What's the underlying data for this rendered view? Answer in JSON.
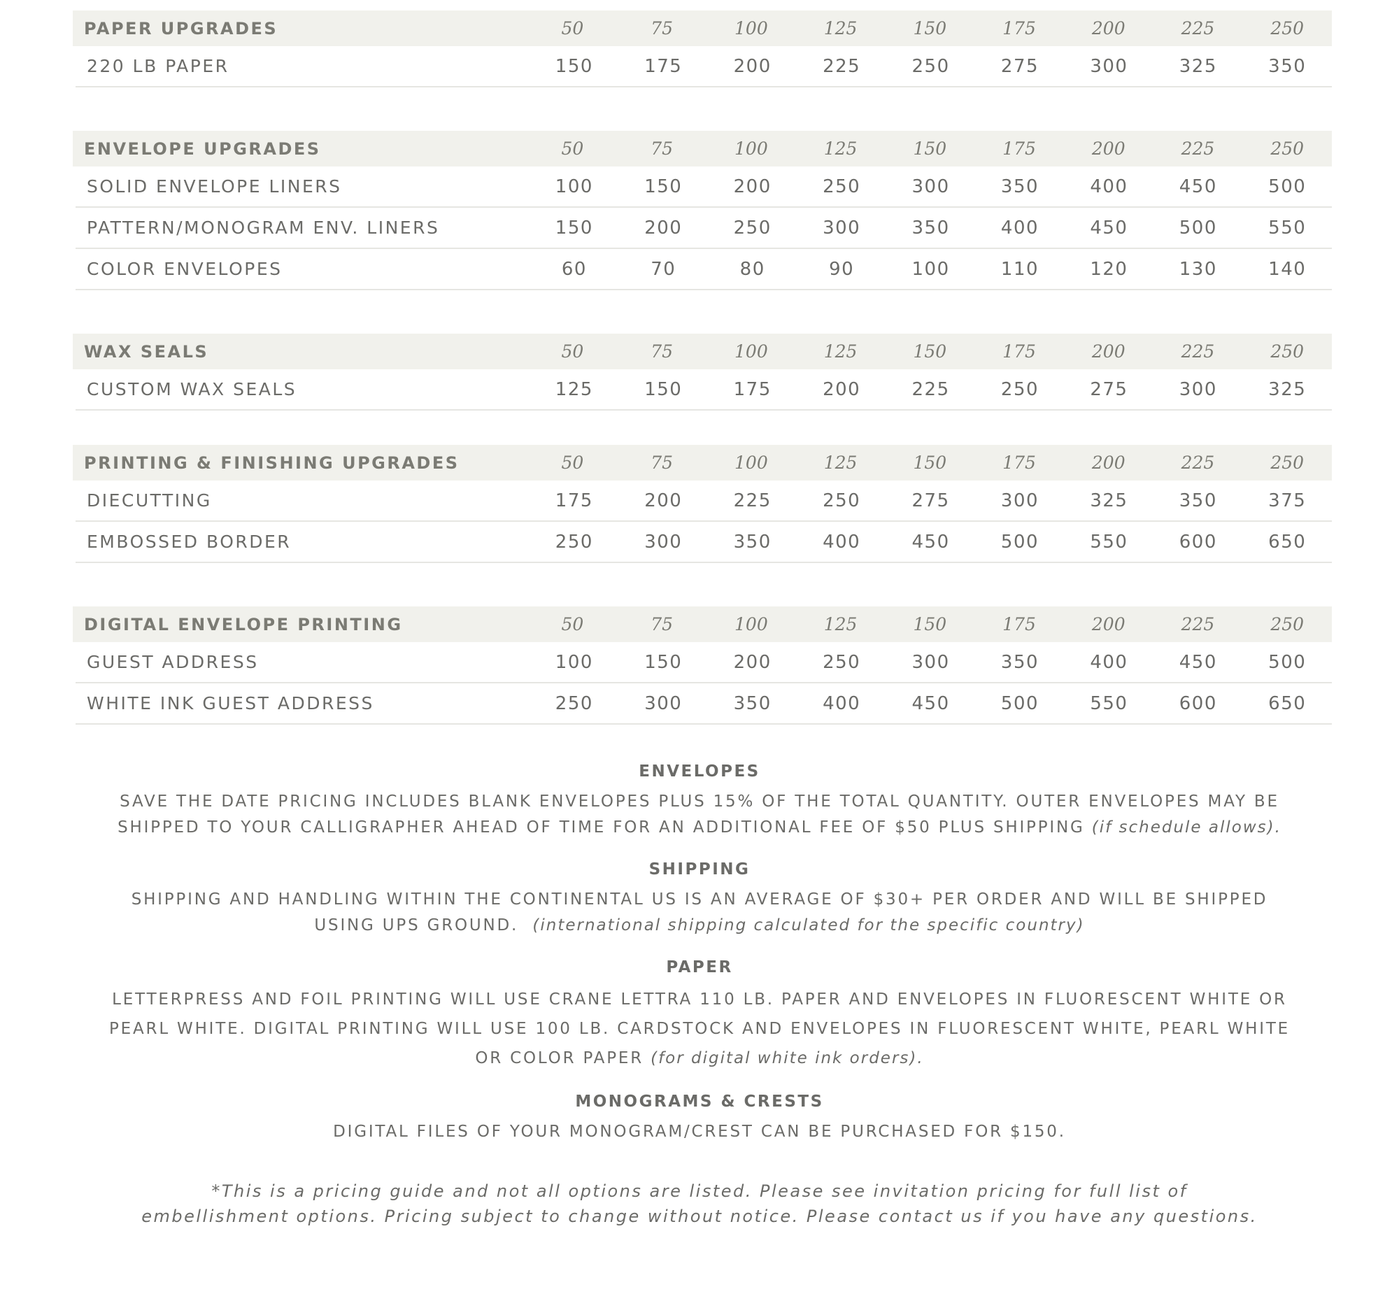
{
  "sections": [
    {
      "title": "PAPER UPGRADES",
      "quantities": [
        "50",
        "75",
        "100",
        "125",
        "150",
        "175",
        "200",
        "225",
        "250"
      ],
      "rows": [
        {
          "label": "220 LB PAPER",
          "prices": [
            "150",
            "175",
            "200",
            "225",
            "250",
            "275",
            "300",
            "325",
            "350"
          ]
        }
      ]
    },
    {
      "title": "ENVELOPE UPGRADES",
      "quantities": [
        "50",
        "75",
        "100",
        "125",
        "150",
        "175",
        "200",
        "225",
        "250"
      ],
      "rows": [
        {
          "label": "SOLID ENVELOPE LINERS",
          "prices": [
            "100",
            "150",
            "200",
            "250",
            "300",
            "350",
            "400",
            "450",
            "500"
          ]
        },
        {
          "label": "PATTERN/MONOGRAM ENV. LINERS",
          "prices": [
            "150",
            "200",
            "250",
            "300",
            "350",
            "400",
            "450",
            "500",
            "550"
          ]
        },
        {
          "label": "COLOR ENVELOPES",
          "prices": [
            "60",
            "70",
            "80",
            "90",
            "100",
            "110",
            "120",
            "130",
            "140"
          ]
        }
      ]
    },
    {
      "title": "WAX SEALS",
      "quantities": [
        "50",
        "75",
        "100",
        "125",
        "150",
        "175",
        "200",
        "225",
        "250"
      ],
      "rows": [
        {
          "label": "CUSTOM WAX SEALS",
          "prices": [
            "125",
            "150",
            "175",
            "200",
            "225",
            "250",
            "275",
            "300",
            "325"
          ]
        }
      ]
    },
    {
      "title": "PRINTING & FINISHING UPGRADES",
      "quantities": [
        "50",
        "75",
        "100",
        "125",
        "150",
        "175",
        "200",
        "225",
        "250"
      ],
      "rows": [
        {
          "label": "DIECUTTING",
          "prices": [
            "175",
            "200",
            "225",
            "250",
            "275",
            "300",
            "325",
            "350",
            "375"
          ]
        },
        {
          "label": "EMBOSSED BORDER",
          "prices": [
            "250",
            "300",
            "350",
            "400",
            "450",
            "500",
            "550",
            "600",
            "650"
          ]
        }
      ]
    },
    {
      "title": "DIGITAL ENVELOPE PRINTING",
      "quantities": [
        "50",
        "75",
        "100",
        "125",
        "150",
        "175",
        "200",
        "225",
        "250"
      ],
      "rows": [
        {
          "label": "GUEST ADDRESS",
          "prices": [
            "100",
            "150",
            "200",
            "250",
            "300",
            "350",
            "400",
            "450",
            "500"
          ]
        },
        {
          "label": "WHITE INK GUEST ADDRESS",
          "prices": [
            "250",
            "300",
            "350",
            "400",
            "450",
            "500",
            "550",
            "600",
            "650"
          ]
        }
      ]
    }
  ],
  "notes": {
    "envelopes": {
      "title": "ENVELOPES",
      "body": "SAVE THE DATE PRICING INCLUDES BLANK ENVELOPES PLUS 15% OF THE TOTAL QUANTITY. OUTER ENVELOPES MAY BE SHIPPED TO YOUR CALLIGRAPHER AHEAD OF TIME FOR AN ADDITIONAL FEE OF $50 PLUS SHIPPING",
      "aside": "(if schedule allows)."
    },
    "shipping": {
      "title": "SHIPPING",
      "body": "SHIPPING AND HANDLING WITHIN THE CONTINENTAL US IS AN AVERAGE OF $30+ PER ORDER AND WILL BE SHIPPED USING UPS GROUND.",
      "aside": "(international shipping calculated for the specific country)"
    },
    "paper": {
      "title": "PAPER",
      "body": "LETTERPRESS AND FOIL PRINTING WILL USE CRANE LETTRA 110 LB. PAPER AND ENVELOPES IN FLUORESCENT WHITE OR PEARL WHITE. DIGITAL PRINTING WILL USE 100 LB. CARDSTOCK AND ENVELOPES IN FLUORESCENT WHITE, PEARL WHITE OR COLOR PAPER",
      "aside": "(for digital white ink orders)."
    },
    "monograms": {
      "title": "MONOGRAMS & CRESTS",
      "body": "DIGITAL FILES OF YOUR MONOGRAM/CREST CAN BE PURCHASED FOR $150."
    },
    "footnote": "*This is a pricing guide and not all options are listed.  Please see invitation pricing for full list of embellishment options. Pricing subject to change without notice. Please contact us if you have any questions."
  },
  "colors": {
    "header_bg": "#f1f1ec",
    "text": "#6b6b68",
    "divider": "#e6e6e2"
  }
}
